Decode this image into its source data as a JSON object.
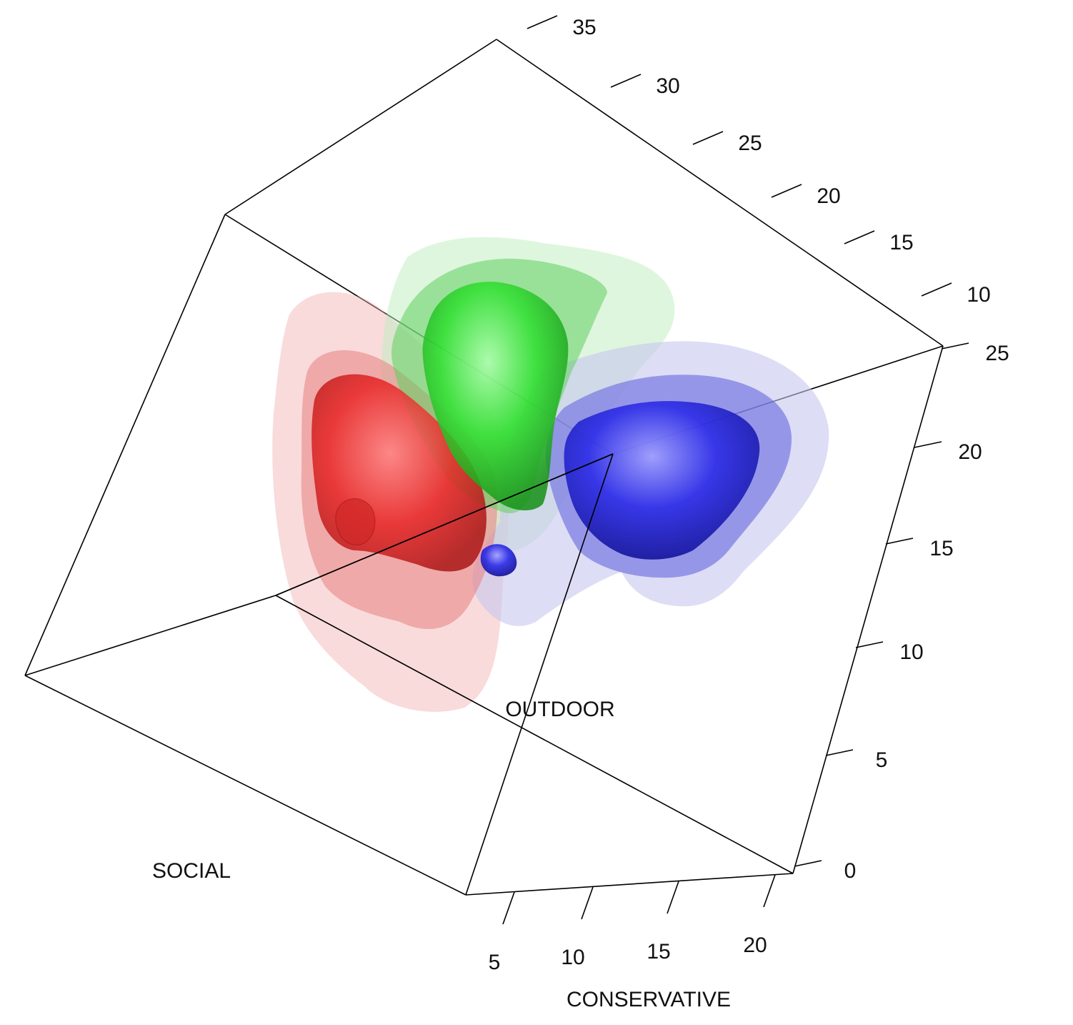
{
  "chart_data": {
    "type": "3d-density-isosurface",
    "title": "",
    "axes": {
      "conservative": {
        "title": "CONSERVATIVE",
        "ticks": [
          "5",
          "10",
          "15",
          "20"
        ]
      },
      "social": {
        "title": "SOCIAL",
        "ticks": [
          "10",
          "15",
          "20",
          "25",
          "30",
          "35"
        ]
      },
      "outdoor": {
        "title": "OUTDOOR",
        "ticks": [
          "0",
          "5",
          "10",
          "15",
          "20",
          "25"
        ]
      }
    },
    "groups": [
      {
        "color": "#e02020",
        "levels": 3
      },
      {
        "color": "#20c020",
        "levels": 3
      },
      {
        "color": "#2020d8",
        "levels": 3
      }
    ],
    "legend": "none",
    "grid": false
  }
}
